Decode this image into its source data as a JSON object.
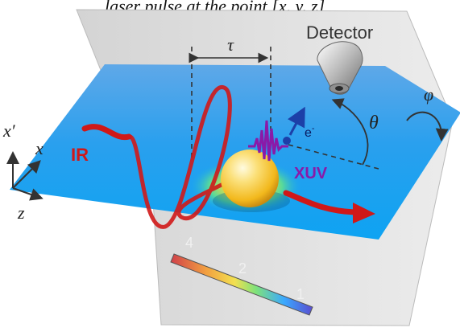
{
  "header_text": "laser pulse at the point [x, y, z]",
  "labels": {
    "detector": "Detector",
    "tau": "τ",
    "phi": "φ",
    "theta": "θ",
    "electron": "e",
    "electron_sup": "-",
    "ir": "IR",
    "xuv": "XUV",
    "axis_x_prime": "x′",
    "axis_x": "x",
    "axis_z": "z"
  },
  "colorbar": {
    "ticks": [
      "4",
      "2",
      "1"
    ],
    "colors": [
      "#d0404a",
      "#f2d640",
      "#7fe27a",
      "#3aa8ff",
      "#5a4ed0"
    ]
  },
  "colors": {
    "plane": "#1aa7f0",
    "ir_beam": "#d01818",
    "xuv": "#8a1aa8",
    "sphere": "#f7c830"
  }
}
